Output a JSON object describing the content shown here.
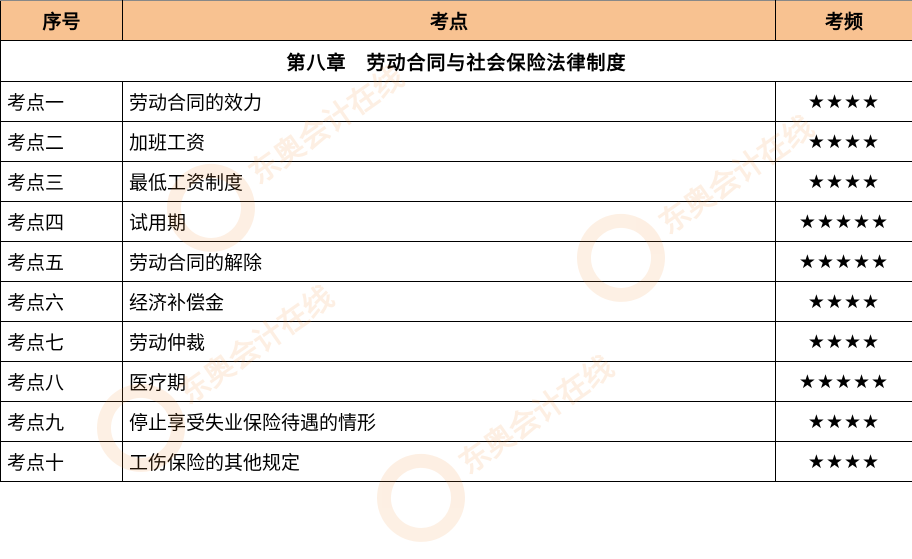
{
  "headers": {
    "seq": "序号",
    "topic": "考点",
    "freq": "考频"
  },
  "chapter": "第八章　劳动合同与社会保险法律制度",
  "rows": [
    {
      "id": "考点一",
      "topic": "劳动合同的效力",
      "freq": "★★★★",
      "stars": 4
    },
    {
      "id": "考点二",
      "topic": "加班工资",
      "freq": "★★★★",
      "stars": 4
    },
    {
      "id": "考点三",
      "topic": "最低工资制度",
      "freq": "★★★★",
      "stars": 4
    },
    {
      "id": "考点四",
      "topic": "试用期",
      "freq": "★★★★★",
      "stars": 5
    },
    {
      "id": "考点五",
      "topic": "劳动合同的解除",
      "freq": "★★★★★",
      "stars": 5
    },
    {
      "id": "考点六",
      "topic": "经济补偿金",
      "freq": "★★★★",
      "stars": 4
    },
    {
      "id": "考点七",
      "topic": "劳动仲裁",
      "freq": "★★★★",
      "stars": 4
    },
    {
      "id": "考点八",
      "topic": "医疗期",
      "freq": "★★★★★",
      "stars": 5
    },
    {
      "id": "考点九",
      "topic": "停止享受失业保险待遇的情形",
      "freq": "★★★★",
      "stars": 4
    },
    {
      "id": "考点十",
      "topic": "工伤保险的其他规定",
      "freq": "★★★★",
      "stars": 4
    }
  ],
  "watermark": {
    "text": "东奥会计在线",
    "url": "www.dongao.com"
  },
  "colors": {
    "header_bg": "#F8C291",
    "watermark": "#F08A30"
  }
}
